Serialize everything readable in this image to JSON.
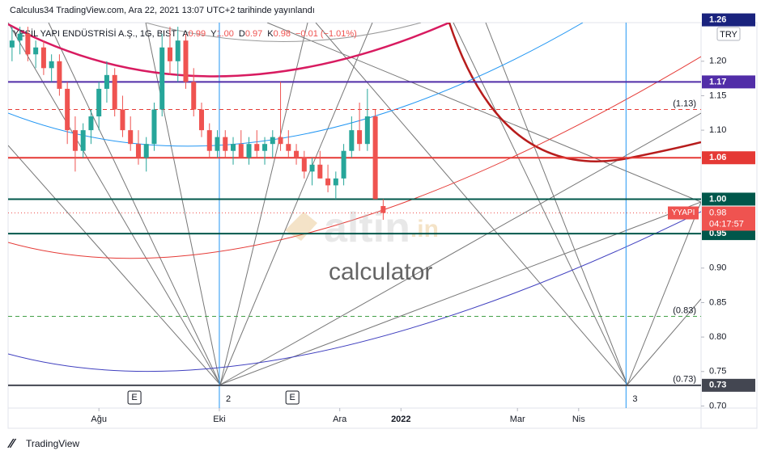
{
  "header": {
    "publisher": "Calculus34 TradingView.com, Ara 22, 2021 13:07 UTC+2 tarihinde yayınlandı"
  },
  "legend": {
    "symbol": "YEŞİL YAPI ENDÜSTRİSİ A.Ş., 1G, BIST",
    "ohlc": [
      {
        "label": "A",
        "value": "0.99"
      },
      {
        "label": "Y",
        "value": "1.00"
      },
      {
        "label": "D",
        "value": "0.97"
      },
      {
        "label": "K",
        "value": "0.98"
      }
    ],
    "change": "−0.01 (−1.01%)"
  },
  "currency": "TRY",
  "watermark": {
    "brand": "altin",
    "domain": ".in",
    "sub": "calculator"
  },
  "footer": "TradingView",
  "chart_data": {
    "type": "candlestick",
    "up_color": "#26a69a",
    "down_color": "#ef5350",
    "x": [
      2,
      6,
      10,
      14,
      18,
      22,
      26,
      30,
      34,
      38,
      42,
      46,
      50,
      54,
      58,
      62,
      66,
      70,
      74,
      78,
      82,
      86,
      90,
      94,
      98,
      102,
      106,
      110,
      114,
      118,
      122,
      126,
      130,
      134,
      138,
      142,
      146,
      150,
      154,
      158,
      162,
      166,
      170,
      174,
      178,
      182,
      186,
      190
    ],
    "open": [
      1.22,
      1.23,
      1.24,
      1.21,
      1.22,
      1.19,
      1.2,
      1.16,
      1.1,
      1.07,
      1.1,
      1.12,
      1.16,
      1.18,
      1.13,
      1.1,
      1.08,
      1.06,
      1.08,
      1.13,
      1.22,
      1.2,
      1.23,
      1.17,
      1.13,
      1.1,
      1.07,
      1.09,
      1.07,
      1.08,
      1.06,
      1.08,
      1.07,
      1.08,
      1.09,
      1.08,
      1.07,
      1.06,
      1.04,
      1.05,
      1.03,
      1.02,
      1.03,
      1.07,
      1.1,
      1.08,
      1.12,
      0.99
    ],
    "high": [
      1.25,
      1.25,
      1.25,
      1.23,
      1.23,
      1.21,
      1.21,
      1.17,
      1.12,
      1.11,
      1.13,
      1.17,
      1.2,
      1.19,
      1.15,
      1.12,
      1.1,
      1.09,
      1.14,
      1.24,
      1.25,
      1.25,
      1.24,
      1.19,
      1.14,
      1.11,
      1.1,
      1.1,
      1.09,
      1.1,
      1.09,
      1.1,
      1.09,
      1.1,
      1.17,
      1.1,
      1.08,
      1.07,
      1.06,
      1.07,
      1.05,
      1.04,
      1.08,
      1.12,
      1.14,
      1.16,
      1.13,
      1.0
    ],
    "low": [
      1.2,
      1.21,
      1.2,
      1.19,
      1.18,
      1.17,
      1.15,
      1.08,
      1.04,
      1.06,
      1.08,
      1.1,
      1.14,
      1.12,
      1.09,
      1.07,
      1.05,
      1.04,
      1.07,
      1.12,
      1.18,
      1.17,
      1.16,
      1.12,
      1.09,
      1.06,
      1.06,
      1.06,
      1.05,
      1.06,
      1.05,
      1.06,
      1.05,
      1.06,
      1.07,
      1.06,
      1.05,
      1.03,
      1.02,
      1.03,
      1.01,
      1.0,
      1.02,
      1.06,
      1.07,
      1.07,
      1.0,
      0.97
    ],
    "close": [
      1.23,
      1.24,
      1.21,
      1.22,
      1.19,
      1.2,
      1.16,
      1.1,
      1.07,
      1.1,
      1.12,
      1.16,
      1.18,
      1.13,
      1.1,
      1.08,
      1.06,
      1.08,
      1.13,
      1.22,
      1.2,
      1.23,
      1.17,
      1.13,
      1.1,
      1.07,
      1.09,
      1.07,
      1.08,
      1.06,
      1.08,
      1.07,
      1.08,
      1.09,
      1.08,
      1.07,
      1.06,
      1.04,
      1.05,
      1.03,
      1.02,
      1.03,
      1.07,
      1.1,
      1.08,
      1.12,
      1.0,
      0.98
    ],
    "xlim": [
      0,
      351
    ],
    "ylim": [
      0.697,
      1.256
    ],
    "xticks": [
      {
        "value": 46,
        "label": "Ağu"
      },
      {
        "value": 107,
        "label": "Eki"
      },
      {
        "value": 168,
        "label": "Ara"
      },
      {
        "value": 199,
        "label": "2022"
      },
      {
        "value": 258,
        "label": "Mar"
      },
      {
        "value": 289,
        "label": "Nis"
      }
    ],
    "yticks": [
      {
        "value": 1.2,
        "label": "1.20"
      },
      1.15,
      {
        "value": 1.1,
        "label": "1.10"
      },
      {
        "value": 0.9,
        "label": "0.90"
      },
      0.85,
      {
        "value": 0.8,
        "label": "0.80"
      },
      0.75,
      {
        "value": 0.7,
        "label": "0.70"
      }
    ],
    "levels": [
      {
        "value": 1.26,
        "color": "#1a237e"
      },
      {
        "value": 1.17,
        "color": "#512da8"
      },
      {
        "value": 1.06,
        "color": "#e53935"
      },
      {
        "value": 1.0,
        "label": "1.00",
        "color": "#00574b"
      },
      {
        "value": 0.95,
        "color": "#00574b"
      },
      {
        "value": 0.73,
        "color": "#434651"
      }
    ],
    "dashed_levels": [
      {
        "value": 1.13,
        "label": "(1.13)",
        "color": "#e53935"
      },
      {
        "value": 0.83,
        "label": "(0.83)",
        "color": "#43a047"
      },
      {
        "value": 0.73,
        "label": "(0.73)",
        "color": "#5d7bb0"
      }
    ],
    "last": {
      "value": 0.98,
      "symbol": "YYAPI",
      "countdown": "04:17:57",
      "color": "#ef5350"
    },
    "events": [
      {
        "x": 64,
        "label": "E"
      },
      {
        "x": 144,
        "label": "E"
      }
    ],
    "cycles": [
      {
        "x": 107,
        "label": "2",
        "color": "#2196f3"
      },
      {
        "x": 313,
        "label": "3",
        "color": "#2196f3"
      }
    ]
  }
}
